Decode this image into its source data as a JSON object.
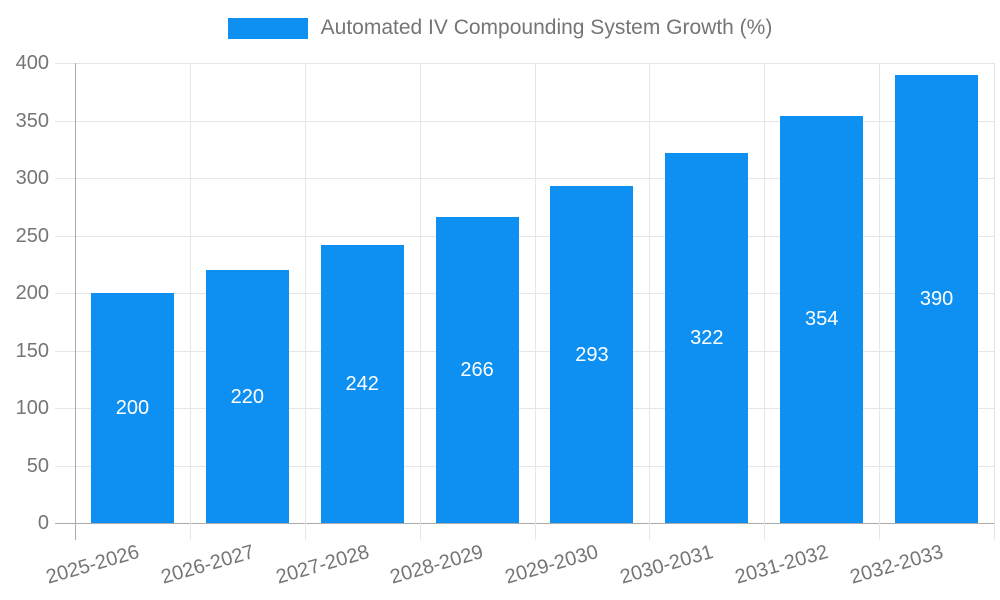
{
  "chart_data": {
    "type": "bar",
    "title": "Automated IV Compounding System Growth (%)",
    "categories": [
      "2025-2026",
      "2026-2027",
      "2027-2028",
      "2028-2029",
      "2029-2030",
      "2030-2031",
      "2031-2032",
      "2032-2033"
    ],
    "series": [
      {
        "name": "Automated IV Compounding System Growth (%)",
        "values": [
          200,
          220,
          242,
          266,
          293,
          322,
          354,
          390
        ]
      }
    ],
    "data_labels": [
      "200",
      "220",
      "242",
      "266",
      "293",
      "322",
      "354",
      "390"
    ],
    "xlabel": "",
    "ylabel": "",
    "ylim": [
      0,
      400
    ],
    "yticks": [
      0,
      50,
      100,
      150,
      200,
      250,
      300,
      350,
      400
    ],
    "grid": true,
    "legend_position": "top"
  },
  "colors": {
    "bar": "#0d90f2",
    "grid": "#e6e6e6",
    "axis": "#ababab",
    "tick_text": "#757575",
    "legend_text": "#757575",
    "bar_label": "#ffffff",
    "background": "#ffffff"
  }
}
